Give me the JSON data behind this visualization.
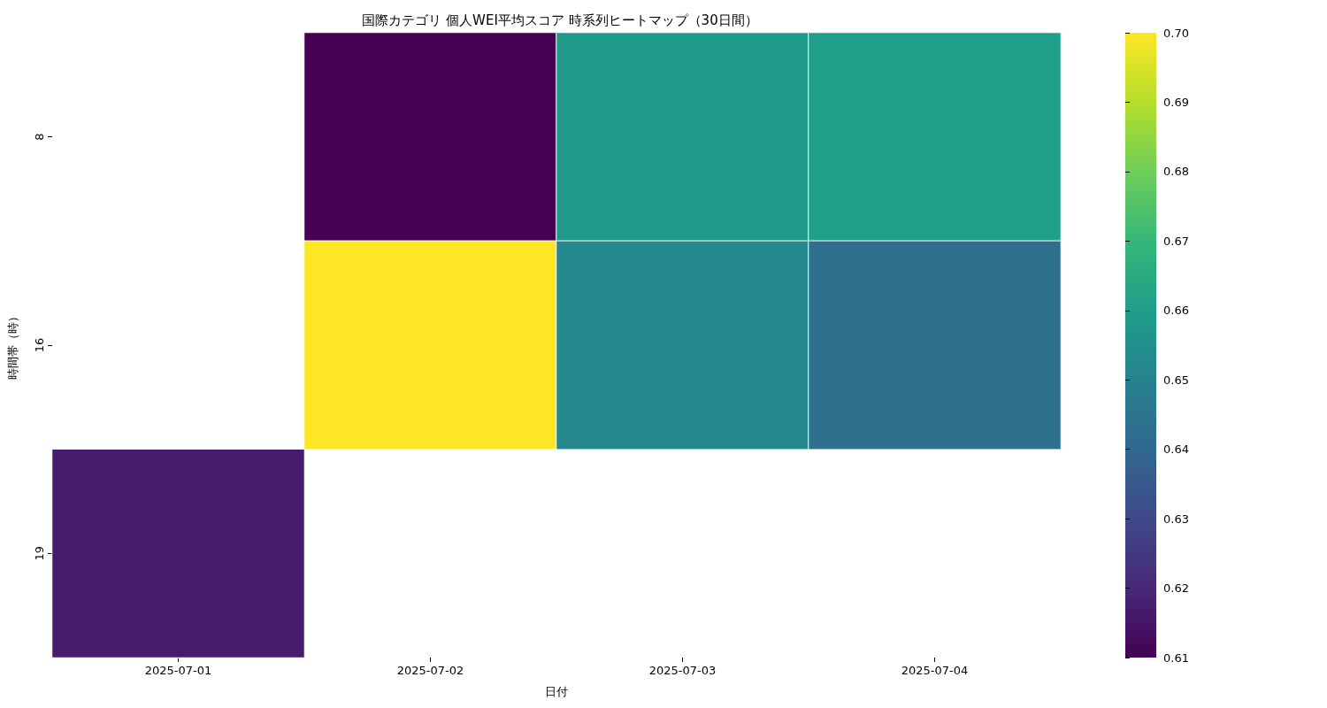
{
  "chart_data": {
    "type": "heatmap",
    "title": "国際カテゴリ 個人WEI平均スコア 時系列ヒートマップ（30日間）",
    "xlabel": "日付",
    "ylabel": "時間帯（時）",
    "categories": [
      "2025-07-01",
      "2025-07-02",
      "2025-07-03",
      "2025-07-04"
    ],
    "y_categories": [
      "8",
      "16",
      "19"
    ],
    "cells": [
      [
        null,
        0.61,
        0.659,
        0.66
      ],
      [
        null,
        0.7,
        0.652,
        0.643
      ],
      [
        0.617,
        null,
        null,
        null
      ]
    ],
    "clim": [
      0.61,
      0.7
    ],
    "cticks": [
      0.61,
      0.62,
      0.63,
      0.64,
      0.65,
      0.66,
      0.67,
      0.68,
      0.69,
      {
        "value": 0.7,
        "label": "0.70"
      }
    ]
  }
}
